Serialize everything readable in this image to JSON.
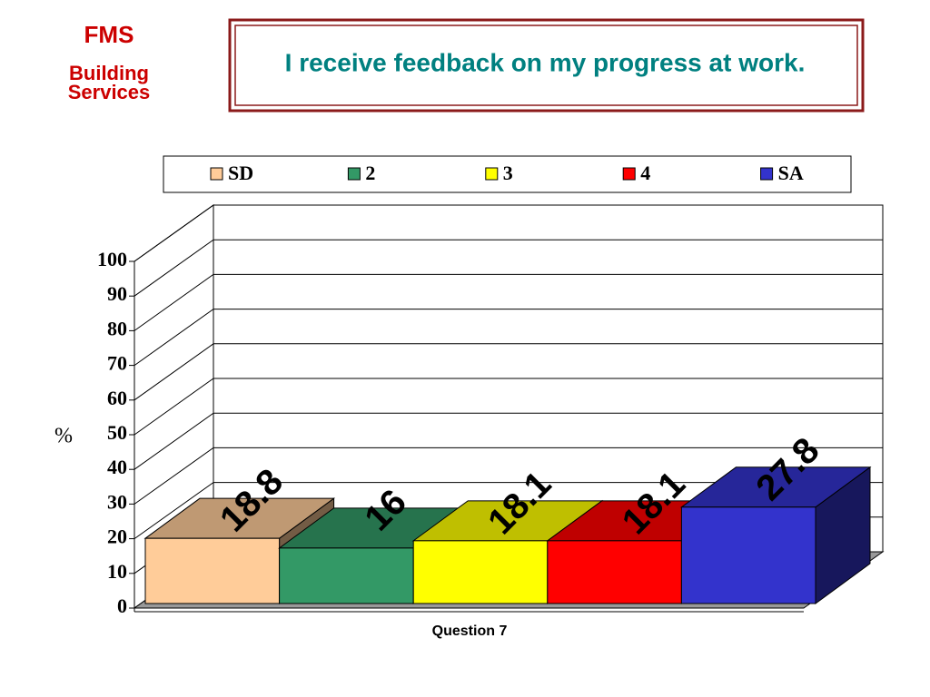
{
  "logo": {
    "line1": "FMS",
    "line2": "Building",
    "line3": "Services"
  },
  "chart_data": {
    "type": "bar",
    "title": "I receive feedback on my progress at work.",
    "categories": [
      "Question 7"
    ],
    "y_label": "%",
    "series": [
      {
        "name": "SD",
        "color": "#ffcc99",
        "values": [
          18.8
        ]
      },
      {
        "name": "2",
        "color": "#339966",
        "values": [
          16
        ]
      },
      {
        "name": "3",
        "color": "#ffff00",
        "values": [
          18.1
        ]
      },
      {
        "name": "4",
        "color": "#ff0000",
        "values": [
          18.1
        ]
      },
      {
        "name": "SA",
        "color": "#3333cc",
        "values": [
          27.8
        ]
      }
    ],
    "ylim": [
      0,
      100
    ],
    "yticks": [
      0,
      10,
      20,
      30,
      40,
      50,
      60,
      70,
      80,
      90,
      100
    ],
    "grid": true,
    "legend": "top"
  }
}
